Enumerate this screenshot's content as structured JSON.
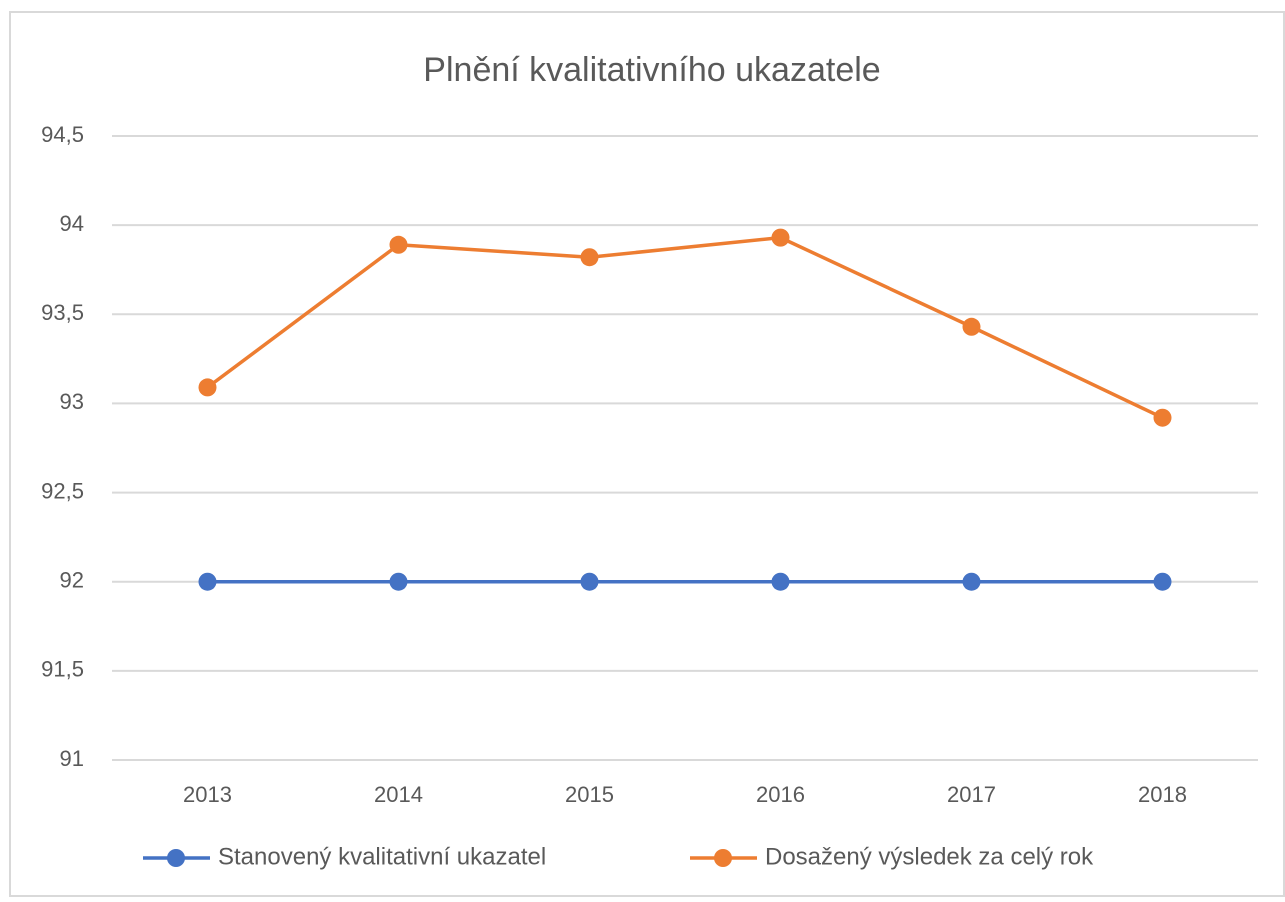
{
  "chart_data": {
    "type": "line",
    "title": "Plnění kvalitativního ukazatele",
    "categories": [
      "2013",
      "2014",
      "2015",
      "2016",
      "2017",
      "2018"
    ],
    "series": [
      {
        "name": "Stanovený kvalitativní ukazatel",
        "color": "#4472c4",
        "values": [
          92,
          92,
          92,
          92,
          92,
          92
        ]
      },
      {
        "name": "Dosažený výsledek za celý rok",
        "color": "#ed7d31",
        "values": [
          93.09,
          93.89,
          93.82,
          93.93,
          93.43,
          92.92
        ]
      }
    ],
    "ylim": [
      91,
      94.5
    ],
    "yticks": [
      91,
      {
        "value": 91.5,
        "label": "91,5"
      },
      92,
      {
        "value": 92.5,
        "label": "92,5"
      },
      93,
      {
        "value": 93.5,
        "label": "93,5"
      },
      94,
      {
        "value": 94.5,
        "label": "94,5"
      }
    ],
    "grid": true,
    "legend": "bottom"
  }
}
